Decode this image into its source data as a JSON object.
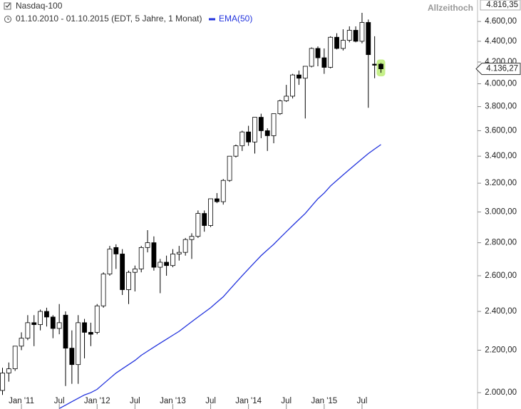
{
  "chart_data": {
    "type": "candlestick",
    "title": "Nasdaq-100",
    "subtitle": "01.10.2010 - 01.10.2015 (EDT, 5 Jahre, 1 Monat)",
    "log_scale": true,
    "ylim": [
      1928,
      4827
    ],
    "yticks": [
      {
        "value": 2000,
        "label": "2.000,00"
      },
      {
        "value": 2200,
        "label": "2.200,00"
      },
      {
        "value": 2400,
        "label": "2.400,00"
      },
      {
        "value": 2600,
        "label": "2.600,00"
      },
      {
        "value": 2800,
        "label": "2.800,00"
      },
      {
        "value": 3000,
        "label": "3.000,00"
      },
      {
        "value": 3200,
        "label": "3.200,00"
      },
      {
        "value": 3400,
        "label": "3.400,00"
      },
      {
        "value": 3600,
        "label": "3.600,00"
      },
      {
        "value": 3800,
        "label": "3.800,00"
      },
      {
        "value": 4000,
        "label": "4.000,00"
      },
      {
        "value": 4200,
        "label": "4.200,00"
      },
      {
        "value": 4400,
        "label": "4.400,00"
      },
      {
        "value": 4600,
        "label": "4.600,00"
      }
    ],
    "categories": [
      null,
      null,
      null,
      "Jan '11",
      null,
      null,
      null,
      null,
      null,
      "Jul",
      null,
      null,
      null,
      null,
      null,
      "Jan '12",
      null,
      null,
      null,
      null,
      null,
      "Jul",
      null,
      null,
      null,
      null,
      null,
      "Jan '13",
      null,
      null,
      null,
      null,
      null,
      "Jul",
      null,
      null,
      null,
      null,
      null,
      "Jan '14",
      null,
      null,
      null,
      null,
      null,
      "Jul",
      null,
      null,
      null,
      null,
      null,
      "Jan '15",
      null,
      null,
      null,
      null,
      null,
      "Jul",
      null,
      null,
      null
    ],
    "series": [
      {
        "up_color": "#ffffff",
        "down_color": "#000000",
        "open": [
          2010,
          2090,
          2110,
          2220,
          2260,
          2340,
          2330,
          2400,
          2370,
          2310,
          2380,
          2210,
          2130,
          2340,
          2290,
          2290,
          2430,
          2610,
          2770,
          2730,
          2520,
          2620,
          2640,
          2770,
          2800,
          2650,
          2680,
          2660,
          2730,
          2740,
          2820,
          2840,
          2990,
          2910,
          3090,
          3070,
          3220,
          3400,
          3480,
          3590,
          3510,
          3710,
          3600,
          3560,
          3740,
          3850,
          3890,
          4080,
          4050,
          4160,
          4330,
          4240,
          4150,
          4440,
          4330,
          4410,
          4510,
          4400,
          4590,
          4180,
          4180
        ],
        "high": [
          2115,
          2140,
          2220,
          2290,
          2380,
          2380,
          2410,
          2420,
          2380,
          2440,
          2400,
          2300,
          2380,
          2360,
          2340,
          2440,
          2620,
          2780,
          2790,
          2760,
          2630,
          2660,
          2780,
          2880,
          2840,
          2700,
          2720,
          2760,
          2780,
          2830,
          2860,
          3010,
          3010,
          3090,
          3130,
          3230,
          3400,
          3490,
          3600,
          3640,
          3710,
          3740,
          3620,
          3740,
          3860,
          3990,
          4090,
          4120,
          4160,
          4340,
          4350,
          4330,
          4450,
          4480,
          4520,
          4550,
          4550,
          4690,
          4620,
          4450,
          4190
        ],
        "low": [
          1990,
          2050,
          2100,
          2200,
          2250,
          2220,
          2300,
          2320,
          2260,
          2280,
          2030,
          2040,
          2040,
          2160,
          2220,
          2280,
          2420,
          2600,
          2640,
          2490,
          2440,
          2510,
          2620,
          2740,
          2630,
          2500,
          2600,
          2650,
          2690,
          2720,
          2700,
          2830,
          2870,
          2900,
          3060,
          3050,
          3210,
          3390,
          3440,
          3480,
          3420,
          3540,
          3440,
          3500,
          3730,
          3840,
          3870,
          3990,
          3700,
          4150,
          4160,
          4090,
          4140,
          4320,
          4310,
          4390,
          4390,
          4380,
          3790,
          4050,
          4100
        ],
        "close": [
          2090,
          2110,
          2220,
          2260,
          2340,
          2330,
          2400,
          2370,
          2310,
          2340,
          2210,
          2130,
          2340,
          2290,
          2280,
          2430,
          2610,
          2760,
          2730,
          2520,
          2620,
          2640,
          2770,
          2800,
          2650,
          2680,
          2660,
          2730,
          2740,
          2820,
          2840,
          2990,
          2910,
          3090,
          3070,
          3220,
          3400,
          3480,
          3590,
          3510,
          3710,
          3600,
          3560,
          3740,
          3850,
          3890,
          4080,
          4050,
          4160,
          4330,
          4240,
          4150,
          4440,
          4330,
          4410,
          4510,
          4400,
          4590,
          4270,
          4170,
          4136.27
        ]
      },
      {
        "name": "EMA(50)",
        "color": "#2233dd",
        "values": [
          null,
          null,
          null,
          null,
          null,
          null,
          null,
          null,
          null,
          1930,
          1945,
          1960,
          1975,
          1990,
          2000,
          2015,
          2040,
          2065,
          2090,
          2110,
          2130,
          2150,
          2175,
          2195,
          2215,
          2235,
          2255,
          2275,
          2295,
          2320,
          2345,
          2370,
          2395,
          2420,
          2450,
          2480,
          2520,
          2560,
          2600,
          2640,
          2680,
          2720,
          2755,
          2790,
          2830,
          2870,
          2910,
          2950,
          2990,
          3040,
          3090,
          3130,
          3180,
          3220,
          3260,
          3300,
          3340,
          3380,
          3420,
          3455,
          3490
        ]
      }
    ],
    "all_time_high": {
      "text": "Allzeithoch",
      "value": 4816.35,
      "label": "4.816,35"
    },
    "last_price": {
      "value": 4136.27,
      "label": "4.136,27"
    },
    "highlight_color": "#c6f08a"
  }
}
